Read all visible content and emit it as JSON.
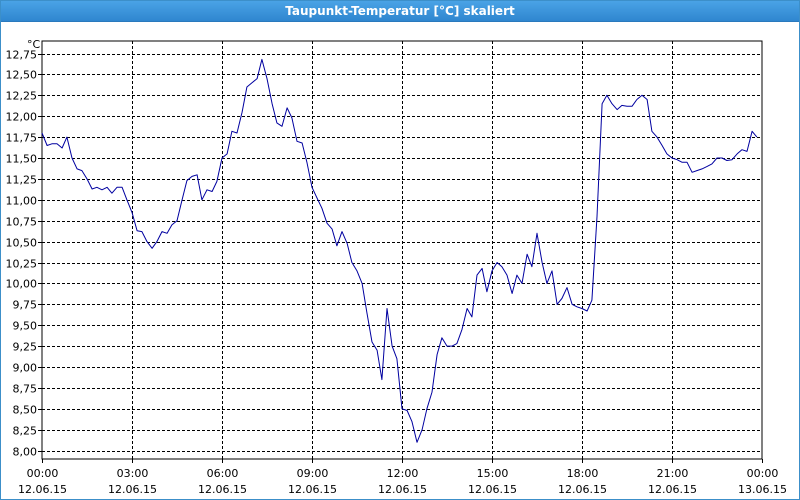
{
  "window": {
    "title": "Taupunkt-Temperatur [°C] skaliert"
  },
  "chart_data": {
    "type": "line",
    "title": "Taupunkt-Temperatur [°C] skaliert",
    "ylabel": "°C",
    "xlabel": "",
    "ylim": [
      7.9,
      12.9
    ],
    "xlim": [
      0,
      24
    ],
    "grid": true,
    "y_ticks": [
      "12,75",
      "12,50",
      "12,25",
      "12,00",
      "11,75",
      "11,50",
      "11,25",
      "11,00",
      "10,75",
      "10,50",
      "10,25",
      "10,00",
      "9,75",
      "9,50",
      "9,25",
      "9,00",
      "8,75",
      "8,50",
      "8,25",
      "8,00"
    ],
    "y_tick_values": [
      12.75,
      12.5,
      12.25,
      12.0,
      11.75,
      11.5,
      11.25,
      11.0,
      10.75,
      10.5,
      10.25,
      10.0,
      9.75,
      9.5,
      9.25,
      9.0,
      8.75,
      8.5,
      8.25,
      8.0
    ],
    "x_ticks": [
      {
        "hour": 0,
        "time": "00:00",
        "date": "12.06.15"
      },
      {
        "hour": 3,
        "time": "03:00",
        "date": "12.06.15"
      },
      {
        "hour": 6,
        "time": "06:00",
        "date": "12.06.15"
      },
      {
        "hour": 9,
        "time": "09:00",
        "date": "12.06.15"
      },
      {
        "hour": 12,
        "time": "12:00",
        "date": "12.06.15"
      },
      {
        "hour": 15,
        "time": "15:00",
        "date": "12.06.15"
      },
      {
        "hour": 18,
        "time": "18:00",
        "date": "12.06.15"
      },
      {
        "hour": 21,
        "time": "21:00",
        "date": "12.06.15"
      },
      {
        "hour": 24,
        "time": "00:00",
        "date": "13.06.15"
      }
    ],
    "series": [
      {
        "color": "#0000a0",
        "points": [
          [
            0.0,
            11.8
          ],
          [
            0.17,
            11.65
          ],
          [
            0.33,
            11.67
          ],
          [
            0.5,
            11.67
          ],
          [
            0.67,
            11.62
          ],
          [
            0.83,
            11.75
          ],
          [
            1.0,
            11.5
          ],
          [
            1.17,
            11.37
          ],
          [
            1.33,
            11.35
          ],
          [
            1.5,
            11.25
          ],
          [
            1.67,
            11.13
          ],
          [
            1.83,
            11.15
          ],
          [
            2.0,
            11.12
          ],
          [
            2.17,
            11.15
          ],
          [
            2.33,
            11.08
          ],
          [
            2.5,
            11.15
          ],
          [
            2.67,
            11.15
          ],
          [
            2.83,
            11.0
          ],
          [
            3.0,
            10.85
          ],
          [
            3.17,
            10.63
          ],
          [
            3.33,
            10.62
          ],
          [
            3.5,
            10.5
          ],
          [
            3.67,
            10.42
          ],
          [
            3.83,
            10.5
          ],
          [
            4.0,
            10.62
          ],
          [
            4.17,
            10.6
          ],
          [
            4.33,
            10.7
          ],
          [
            4.5,
            10.75
          ],
          [
            4.67,
            11.0
          ],
          [
            4.83,
            11.23
          ],
          [
            5.0,
            11.28
          ],
          [
            5.17,
            11.3
          ],
          [
            5.33,
            11.0
          ],
          [
            5.5,
            11.12
          ],
          [
            5.67,
            11.1
          ],
          [
            5.83,
            11.22
          ],
          [
            6.0,
            11.5
          ],
          [
            6.17,
            11.55
          ],
          [
            6.33,
            11.82
          ],
          [
            6.5,
            11.8
          ],
          [
            6.67,
            12.05
          ],
          [
            6.83,
            12.35
          ],
          [
            7.0,
            12.4
          ],
          [
            7.17,
            12.45
          ],
          [
            7.33,
            12.68
          ],
          [
            7.5,
            12.45
          ],
          [
            7.67,
            12.15
          ],
          [
            7.83,
            11.92
          ],
          [
            8.0,
            11.88
          ],
          [
            8.17,
            12.1
          ],
          [
            8.33,
            11.98
          ],
          [
            8.5,
            11.7
          ],
          [
            8.67,
            11.68
          ],
          [
            8.83,
            11.45
          ],
          [
            9.0,
            11.15
          ],
          [
            9.17,
            11.02
          ],
          [
            9.33,
            10.9
          ],
          [
            9.5,
            10.72
          ],
          [
            9.67,
            10.65
          ],
          [
            9.83,
            10.45
          ],
          [
            10.0,
            10.62
          ],
          [
            10.17,
            10.48
          ],
          [
            10.33,
            10.25
          ],
          [
            10.5,
            10.15
          ],
          [
            10.67,
            10.0
          ],
          [
            10.83,
            9.65
          ],
          [
            11.0,
            9.3
          ],
          [
            11.17,
            9.2
          ],
          [
            11.33,
            8.85
          ],
          [
            11.5,
            9.7
          ],
          [
            11.67,
            9.25
          ],
          [
            11.83,
            9.1
          ],
          [
            12.0,
            8.5
          ],
          [
            12.17,
            8.48
          ],
          [
            12.33,
            8.35
          ],
          [
            12.5,
            8.1
          ],
          [
            12.67,
            8.25
          ],
          [
            12.83,
            8.5
          ],
          [
            13.0,
            8.7
          ],
          [
            13.17,
            9.15
          ],
          [
            13.33,
            9.35
          ],
          [
            13.5,
            9.25
          ],
          [
            13.67,
            9.25
          ],
          [
            13.83,
            9.28
          ],
          [
            14.0,
            9.45
          ],
          [
            14.17,
            9.7
          ],
          [
            14.33,
            9.6
          ],
          [
            14.5,
            10.1
          ],
          [
            14.67,
            10.18
          ],
          [
            14.83,
            9.9
          ],
          [
            15.0,
            10.15
          ],
          [
            15.17,
            10.25
          ],
          [
            15.33,
            10.2
          ],
          [
            15.5,
            10.1
          ],
          [
            15.67,
            9.88
          ],
          [
            15.83,
            10.1
          ],
          [
            16.0,
            10.0
          ],
          [
            16.17,
            10.35
          ],
          [
            16.33,
            10.2
          ],
          [
            16.5,
            10.6
          ],
          [
            16.67,
            10.25
          ],
          [
            16.83,
            10.0
          ],
          [
            17.0,
            10.15
          ],
          [
            17.17,
            9.75
          ],
          [
            17.33,
            9.82
          ],
          [
            17.5,
            9.95
          ],
          [
            17.67,
            9.75
          ],
          [
            17.83,
            9.72
          ],
          [
            18.0,
            9.7
          ],
          [
            18.17,
            9.67
          ],
          [
            18.33,
            9.8
          ],
          [
            18.5,
            10.8
          ],
          [
            18.67,
            12.15
          ],
          [
            18.83,
            12.25
          ],
          [
            19.0,
            12.15
          ],
          [
            19.17,
            12.08
          ],
          [
            19.33,
            12.13
          ],
          [
            19.5,
            12.12
          ],
          [
            19.67,
            12.12
          ],
          [
            19.83,
            12.2
          ],
          [
            20.0,
            12.25
          ],
          [
            20.17,
            12.2
          ],
          [
            20.33,
            11.82
          ],
          [
            20.5,
            11.75
          ],
          [
            20.67,
            11.65
          ],
          [
            20.83,
            11.55
          ],
          [
            21.0,
            11.5
          ],
          [
            21.17,
            11.48
          ],
          [
            21.33,
            11.45
          ],
          [
            21.5,
            11.45
          ],
          [
            21.67,
            11.33
          ],
          [
            21.83,
            11.35
          ],
          [
            22.0,
            11.37
          ],
          [
            22.17,
            11.4
          ],
          [
            22.33,
            11.43
          ],
          [
            22.5,
            11.5
          ],
          [
            22.67,
            11.5
          ],
          [
            22.83,
            11.47
          ],
          [
            23.0,
            11.48
          ],
          [
            23.17,
            11.55
          ],
          [
            23.33,
            11.6
          ],
          [
            23.5,
            11.58
          ],
          [
            23.67,
            11.82
          ],
          [
            23.83,
            11.75
          ]
        ]
      }
    ]
  }
}
